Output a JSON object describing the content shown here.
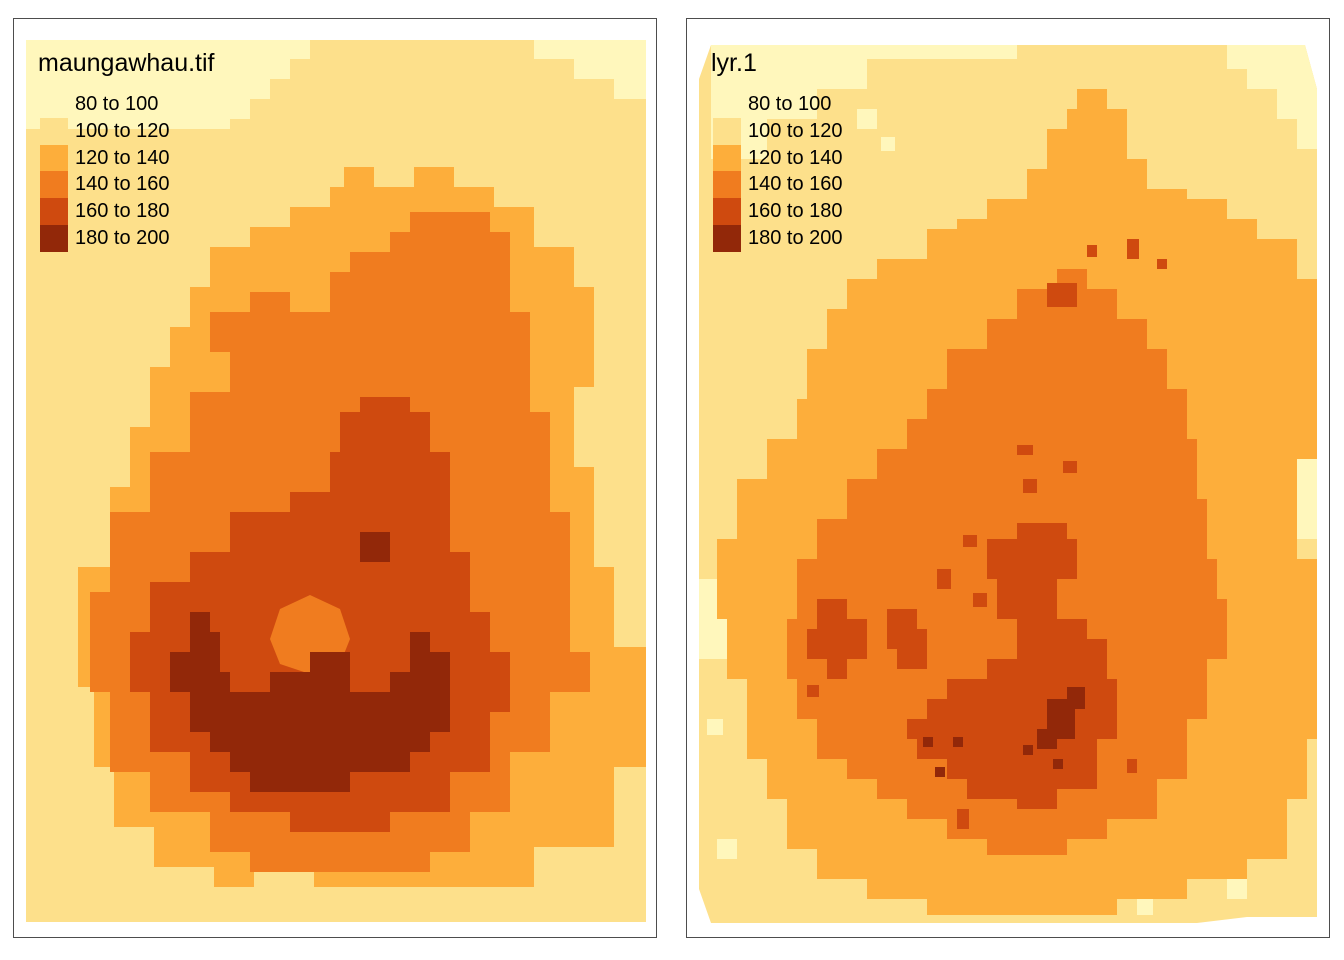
{
  "panels": [
    {
      "title": "maungawhau.tif"
    },
    {
      "title": "lyr.1"
    }
  ],
  "legend": {
    "items": [
      {
        "label": "80 to 100",
        "color": "#fff7bc"
      },
      {
        "label": "100 to 120",
        "color": "#fde08b"
      },
      {
        "label": "120 to 140",
        "color": "#fdae3b"
      },
      {
        "label": "140 to 160",
        "color": "#f07c1f"
      },
      {
        "label": "160 to 180",
        "color": "#cf4a0f"
      },
      {
        "label": "180 to 200",
        "color": "#922809"
      }
    ]
  }
}
